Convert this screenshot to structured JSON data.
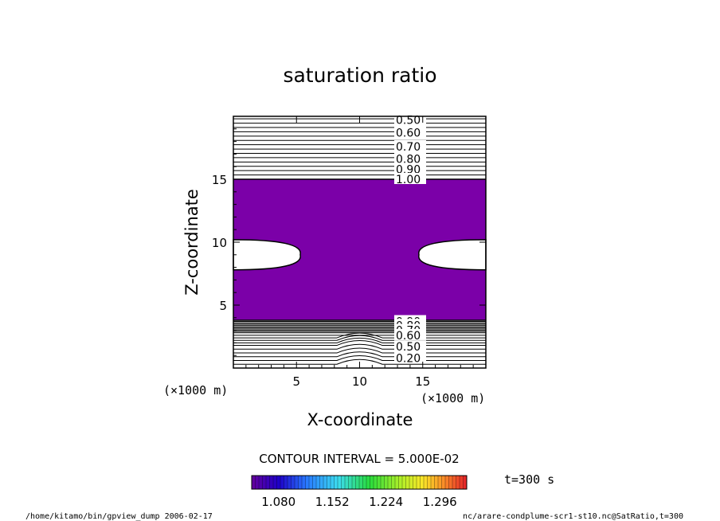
{
  "chart_data": {
    "type": "contour",
    "title": "saturation ratio",
    "xlabel": "X-coordinate",
    "ylabel": "Z-coordinate",
    "x_unit": "(×1000 m)",
    "y_unit": "(×1000 m)",
    "xlim": [
      0,
      20
    ],
    "ylim": [
      0,
      20
    ],
    "x_ticks": [
      5,
      10,
      15
    ],
    "y_ticks": [
      5,
      10,
      15
    ],
    "filled_region": {
      "z_bottom": 3.8,
      "z_top": 15.0,
      "color": "#7b00a8",
      "min_value": 1.0
    },
    "unsaturated_lobes": [
      {
        "side": "left",
        "x_extent": 5.3,
        "z_center": 9.0,
        "z_half_height": 1.2
      },
      {
        "side": "right",
        "x_extent": 14.7,
        "z_center": 9.0,
        "z_half_height": 1.2
      }
    ],
    "contour_labels_upper": [
      {
        "value": "0.50",
        "z": 19.7
      },
      {
        "value": "0.60",
        "z": 18.7
      },
      {
        "value": "0.70",
        "z": 17.6
      },
      {
        "value": "0.80",
        "z": 16.6
      },
      {
        "value": "0.90",
        "z": 15.8
      },
      {
        "value": "1.00",
        "z": 15.0
      }
    ],
    "contour_labels_lower": [
      {
        "value": "0.90",
        "z": 3.7
      },
      {
        "value": "0.80",
        "z": 3.4
      },
      {
        "value": "0.70",
        "z": 3.0
      },
      {
        "value": "0.60",
        "z": 2.6
      },
      {
        "value": "0.50",
        "z": 1.7
      },
      {
        "value": "0.20",
        "z": 0.8
      }
    ],
    "contour_interval_text": "CONTOUR INTERVAL = 5.000E-02",
    "colorbar": {
      "tick_labels": [
        "1.080",
        "1.152",
        "1.224",
        "1.296"
      ],
      "min": 1.044,
      "max": 1.332
    },
    "time_label": "t=300 s"
  },
  "footer": {
    "left": "/home/kitamo/bin/gpview_dump  2006-02-17",
    "right": "nc/arare-condplume-scr1-st10.nc@SatRatio,t=300"
  }
}
